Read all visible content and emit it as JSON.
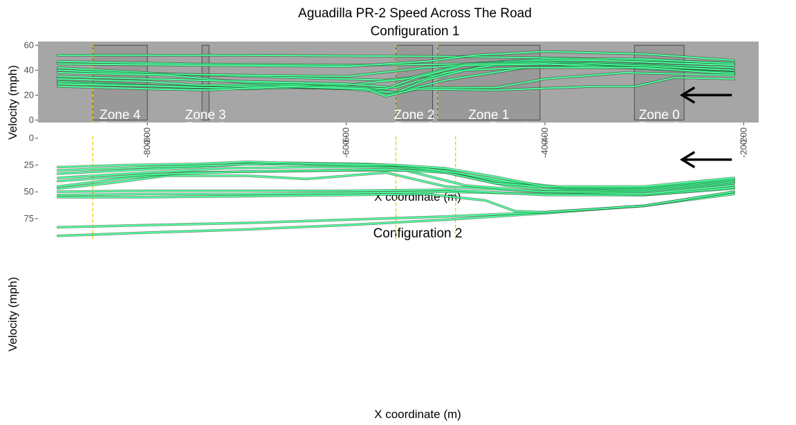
{
  "figure": {
    "title": "Aguadilla PR-2 Speed Across The Road"
  },
  "colors": {
    "panel_bg": "#a6a6a6",
    "zone_fill": "#999999",
    "zone_stroke": "#4a4a4a",
    "trajectory": "#4dff9a",
    "trajectory_edge": "#0a3d1f",
    "marker": "#e6cf00",
    "arrow": "#000000"
  },
  "chart_data": [
    {
      "type": "line",
      "title": "Configuration 1",
      "xlabel": "X coordinate (m)",
      "ylabel": "Velocity (mph)",
      "xlim": [
        -910,
        -185
      ],
      "ylim": [
        -2,
        63
      ],
      "x_ticks": [
        -800,
        -600,
        -400,
        -200
      ],
      "y_ticks": [
        0,
        20,
        40,
        60
      ],
      "zones": [
        {
          "name": "Zone 4",
          "x0": -855,
          "x1": -800,
          "ymax": 60
        },
        {
          "name": "Zone 3",
          "x0": -745,
          "x1": -738,
          "ymax": 60
        },
        {
          "name": "Zone 2",
          "x0": -550,
          "x1": -513,
          "ymax": 60
        },
        {
          "name": "Zone 1",
          "x0": -508,
          "x1": -405,
          "ymax": 60
        },
        {
          "name": "Zone 0",
          "x0": -310,
          "x1": -260,
          "ymax": 60
        }
      ],
      "markers_x": [
        -855,
        -550,
        -508
      ],
      "arrow": {
        "x_from": -212,
        "x_to": -262,
        "y": 20
      },
      "series": [
        {
          "x": [
            -890,
            -700,
            -500,
            -400,
            -300,
            -210
          ],
          "y": [
            52,
            52,
            51,
            50,
            48,
            46
          ]
        },
        {
          "x": [
            -890,
            -750,
            -600,
            -480,
            -400,
            -300,
            -210
          ],
          "y": [
            47,
            45,
            44,
            45,
            49,
            49,
            45
          ]
        },
        {
          "x": [
            -890,
            -750,
            -600,
            -520,
            -470,
            -400,
            -300,
            -210
          ],
          "y": [
            45,
            44,
            43,
            47,
            52,
            55,
            53,
            48
          ]
        },
        {
          "x": [
            -890,
            -780,
            -650,
            -560,
            -500,
            -440,
            -350,
            -210
          ],
          "y": [
            42,
            37,
            34,
            32,
            37,
            47,
            48,
            44
          ]
        },
        {
          "x": [
            -890,
            -800,
            -700,
            -600,
            -520,
            -450,
            -350,
            -210
          ],
          "y": [
            40,
            37,
            36,
            35,
            42,
            46,
            46,
            42
          ]
        },
        {
          "x": [
            -890,
            -780,
            -700,
            -600,
            -540,
            -480,
            -400,
            -300,
            -210
          ],
          "y": [
            38,
            36,
            30,
            28,
            33,
            45,
            46,
            44,
            40
          ]
        },
        {
          "x": [
            -890,
            -800,
            -700,
            -600,
            -550,
            -500,
            -450,
            -350,
            -210
          ],
          "y": [
            35,
            33,
            31,
            29,
            26,
            38,
            44,
            45,
            40
          ]
        },
        {
          "x": [
            -890,
            -800,
            -750,
            -650,
            -560,
            -530,
            -480,
            -400,
            -300,
            -210
          ],
          "y": [
            33,
            31,
            28,
            28,
            25,
            34,
            44,
            45,
            42,
            38
          ]
        },
        {
          "x": [
            -890,
            -800,
            -730,
            -650,
            -580,
            -550,
            -500,
            -420,
            -350,
            -210
          ],
          "y": [
            31,
            28,
            26,
            26,
            25,
            22,
            32,
            42,
            43,
            38
          ]
        },
        {
          "x": [
            -890,
            -820,
            -760,
            -680,
            -600,
            -550,
            -520,
            -480,
            -420,
            -300,
            -210
          ],
          "y": [
            30,
            28,
            26,
            27,
            25,
            22,
            32,
            40,
            42,
            42,
            37
          ]
        },
        {
          "x": [
            -890,
            -780,
            -700,
            -620,
            -580,
            -560,
            -520,
            -450,
            -400,
            -320,
            -210
          ],
          "y": [
            29,
            27,
            25,
            27,
            26,
            20,
            26,
            26,
            33,
            38,
            36
          ]
        },
        {
          "x": [
            -890,
            -800,
            -740,
            -660,
            -580,
            -560,
            -530,
            -450,
            -350,
            -310,
            -270,
            -210
          ],
          "y": [
            27,
            25,
            24,
            27,
            25,
            19,
            25,
            24,
            27,
            27,
            34,
            33
          ]
        }
      ]
    },
    {
      "type": "line",
      "title": "Configuration 2",
      "xlabel": "X coordinate (m)",
      "ylabel": "Velocity (mph)",
      "xlim": [
        -910,
        -185
      ],
      "ylim": [
        -3,
        97
      ],
      "x_ticks": [
        -800,
        -600,
        -400,
        -200
      ],
      "y_ticks": [
        0,
        25,
        50,
        75
      ],
      "zones": [
        {
          "name": "Zone 4",
          "x0": -855,
          "x1": -800,
          "ymax": 61
        },
        {
          "name": "Zone 3",
          "x0": -745,
          "x1": -738,
          "ymax": 61
        },
        {
          "name": "Zone 2",
          "x0": -550,
          "x1": -513,
          "ymax": 61
        },
        {
          "name": "Zone 1",
          "x0": -490,
          "x1": -382,
          "ymax": 61
        },
        {
          "name": "Zone 0",
          "x0": -310,
          "x1": -260,
          "ymax": 61
        }
      ],
      "markers_x": [
        -855,
        -550,
        -490
      ],
      "arrow": {
        "x_from": -212,
        "x_to": -262,
        "y": 20
      },
      "series": [
        {
          "x": [
            -890,
            -800,
            -700,
            -600,
            -500,
            -400,
            -300,
            -210
          ],
          "y": [
            91,
            88,
            85,
            81,
            76,
            70,
            63,
            52
          ]
        },
        {
          "x": [
            -890,
            -800,
            -700,
            -600,
            -500,
            -400,
            -300,
            -210
          ],
          "y": [
            83,
            81,
            79,
            76,
            73,
            69,
            63,
            50
          ]
        },
        {
          "x": [
            -890,
            -800,
            -700,
            -600,
            -520,
            -460,
            -430,
            -400,
            -300,
            -210
          ],
          "y": [
            55,
            55,
            54,
            53,
            52,
            58,
            68,
            69,
            63,
            50
          ]
        },
        {
          "x": [
            -890,
            -800,
            -700,
            -600,
            -500,
            -400,
            -300,
            -210
          ],
          "y": [
            53,
            52,
            52,
            51,
            50,
            52,
            53,
            47
          ]
        },
        {
          "x": [
            -890,
            -800,
            -700,
            -600,
            -500,
            -400,
            -300,
            -210
          ],
          "y": [
            50,
            49,
            49,
            49,
            48,
            53,
            53,
            46
          ]
        },
        {
          "x": [
            -890,
            -840,
            -780,
            -700,
            -640,
            -560,
            -500,
            -400,
            -300,
            -210
          ],
          "y": [
            47,
            42,
            35,
            35,
            38,
            32,
            45,
            50,
            52,
            44
          ]
        },
        {
          "x": [
            -890,
            -820,
            -760,
            -680,
            -600,
            -540,
            -480,
            -400,
            -300,
            -210
          ],
          "y": [
            45,
            37,
            32,
            31,
            30,
            30,
            44,
            50,
            50,
            42
          ]
        },
        {
          "x": [
            -890,
            -800,
            -700,
            -620,
            -560,
            -500,
            -440,
            -400,
            -300,
            -210
          ],
          "y": [
            40,
            34,
            31,
            30,
            29,
            32,
            44,
            48,
            49,
            41
          ]
        },
        {
          "x": [
            -890,
            -800,
            -720,
            -640,
            -560,
            -500,
            -450,
            -380,
            -300,
            -210
          ],
          "y": [
            37,
            32,
            28,
            27,
            27,
            30,
            40,
            47,
            48,
            40
          ]
        },
        {
          "x": [
            -890,
            -800,
            -750,
            -700,
            -620,
            -550,
            -500,
            -450,
            -380,
            -300,
            -210
          ],
          "y": [
            33,
            29,
            27,
            24,
            25,
            26,
            32,
            42,
            47,
            47,
            39
          ]
        },
        {
          "x": [
            -890,
            -800,
            -720,
            -660,
            -580,
            -540,
            -490,
            -440,
            -380,
            -300,
            -210
          ],
          "y": [
            30,
            27,
            25,
            23,
            24,
            26,
            32,
            40,
            46,
            46,
            38
          ]
        },
        {
          "x": [
            -890,
            -820,
            -750,
            -700,
            -620,
            -550,
            -500,
            -450,
            -400,
            -300,
            -210
          ],
          "y": [
            27,
            25,
            24,
            22,
            24,
            25,
            28,
            36,
            45,
            45,
            37
          ]
        }
      ]
    }
  ]
}
